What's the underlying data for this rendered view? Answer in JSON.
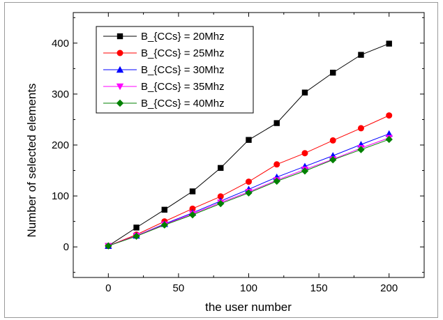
{
  "chart_data": {
    "type": "line",
    "title": "",
    "xlabel": "the user number",
    "ylabel": "Number of selected elements",
    "xlim": [
      -25,
      225
    ],
    "ylim": [
      -60,
      460
    ],
    "x_ticks": [
      0,
      50,
      100,
      150,
      200
    ],
    "y_ticks": [
      0,
      100,
      200,
      300,
      400
    ],
    "grid": false,
    "legend_position": "top-left",
    "x": [
      0,
      20,
      40,
      60,
      80,
      100,
      120,
      140,
      160,
      180,
      200
    ],
    "series": [
      {
        "name": "B_{CCs} = 20Mhz",
        "color": "#000000",
        "marker": "square",
        "values": [
          2,
          38,
          73,
          109,
          155,
          210,
          243,
          303,
          342,
          377,
          399
        ]
      },
      {
        "name": "B_{CCs} = 25Mhz",
        "color": "#ff0000",
        "marker": "circle",
        "values": [
          2,
          24,
          50,
          75,
          99,
          128,
          162,
          184,
          209,
          233,
          258
        ]
      },
      {
        "name": "B_{CCs} = 30Mhz",
        "color": "#0000ff",
        "marker": "triangle-up",
        "values": [
          2,
          22,
          45,
          67,
          90,
          113,
          137,
          158,
          179,
          201,
          222
        ]
      },
      {
        "name": "B_{CCs} = 35Mhz",
        "color": "#ff00ff",
        "marker": "triangle-down",
        "values": [
          2,
          22,
          44,
          65,
          87,
          108,
          131,
          152,
          172,
          194,
          214
        ]
      },
      {
        "name": "B_{CCs} = 40Mhz",
        "color": "#008000",
        "marker": "diamond",
        "values": [
          2,
          21,
          43,
          63,
          85,
          106,
          129,
          149,
          171,
          191,
          211
        ]
      }
    ]
  }
}
